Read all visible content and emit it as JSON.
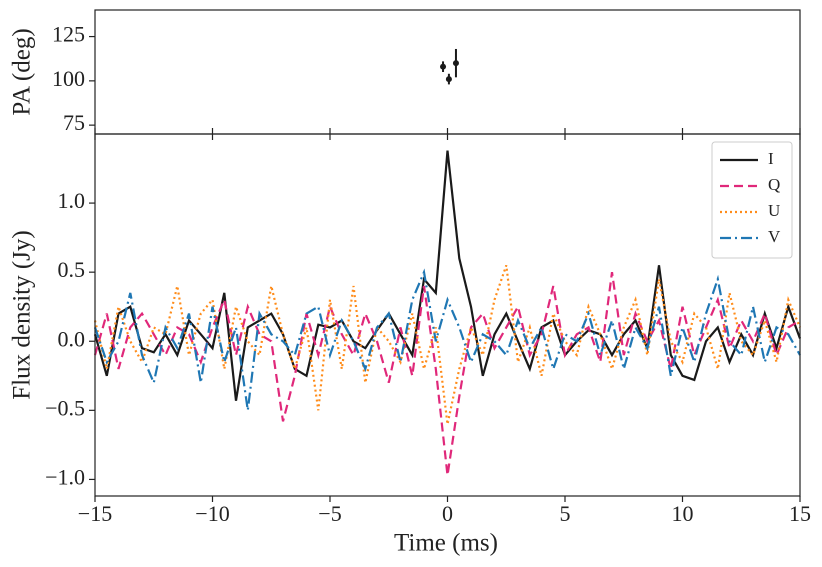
{
  "chart_data": [
    {
      "type": "errorbar",
      "ylabel": "PA (deg)",
      "x": [
        -0.19,
        0.06,
        0.36
      ],
      "values": [
        108,
        101,
        110
      ],
      "errors": [
        3,
        3,
        8
      ],
      "color": "#1a1a1a",
      "xlim": [
        -15,
        15
      ],
      "xticks": [
        {
          "value": -15,
          "label": "−15"
        },
        {
          "value": -10,
          "label": "−10"
        },
        {
          "value": -5,
          "label": "−5"
        },
        0,
        5,
        10,
        15
      ],
      "ylim": [
        70,
        140
      ],
      "yticks": [
        75,
        100,
        125
      ]
    },
    {
      "type": "line",
      "xlabel": "Time (ms)",
      "ylabel": "Flux density (Jy)",
      "legend": "upper right",
      "x": [
        -15,
        -14.5,
        -14,
        -13.5,
        -13,
        -12.5,
        -12,
        -11.5,
        -11,
        -10.5,
        -10,
        -9.5,
        -9,
        -8.5,
        -8,
        -7.5,
        -7,
        -6.5,
        -6,
        -5.5,
        -5,
        -4.5,
        -4,
        -3.5,
        -3,
        -2.5,
        -2,
        -1.5,
        -1,
        -0.5,
        0,
        0.5,
        1,
        1.5,
        2,
        2.5,
        3,
        3.5,
        4,
        4.5,
        5,
        5.5,
        6,
        6.5,
        7,
        7.5,
        8,
        8.5,
        9,
        9.5,
        10,
        10.5,
        11,
        11.5,
        12,
        12.5,
        13,
        13.5,
        14,
        14.5,
        15
      ],
      "series": [
        {
          "name": "I",
          "color": "#1a1a1a",
          "values": [
            0.05,
            -0.25,
            0.2,
            0.25,
            -0.05,
            -0.08,
            0.05,
            -0.1,
            0.15,
            0.05,
            -0.05,
            0.35,
            -0.43,
            0.1,
            0.15,
            0.2,
            0.05,
            -0.2,
            -0.25,
            0.12,
            0.1,
            0.15,
            0.0,
            -0.05,
            0.08,
            0.2,
            0.05,
            -0.1,
            0.45,
            0.35,
            1.38,
            0.6,
            0.25,
            -0.25,
            0.05,
            0.2,
            0.0,
            -0.2,
            0.1,
            0.15,
            -0.1,
            0.0,
            0.08,
            0.05,
            -0.1,
            0.05,
            0.15,
            -0.05,
            0.55,
            -0.1,
            -0.25,
            -0.28,
            0.0,
            0.1,
            -0.15,
            0.05,
            -0.1,
            0.2,
            -0.05,
            0.25,
            0.02
          ]
        },
        {
          "name": "Q",
          "color": "#e0287a",
          "values": [
            -0.1,
            0.2,
            -0.2,
            0.1,
            0.2,
            0.05,
            -0.1,
            0.1,
            0.05,
            -0.15,
            0.1,
            0.3,
            -0.1,
            0.25,
            0.05,
            0.0,
            -0.58,
            -0.25,
            0.2,
            -0.1,
            0.25,
            0.05,
            -0.1,
            0.2,
            0.0,
            -0.3,
            0.1,
            -0.25,
            0.4,
            -0.2,
            -0.97,
            -0.4,
            0.1,
            0.2,
            -0.05,
            0.1,
            0.25,
            -0.1,
            0.05,
            0.4,
            -0.1,
            0.05,
            0.1,
            -0.15,
            0.5,
            -0.1,
            0.2,
            0.0,
            0.15,
            -0.2,
            0.25,
            -0.1,
            0.1,
            0.3,
            -0.05,
            0.15,
            0.0,
            0.2,
            -0.1,
            0.1,
            0.15
          ]
        },
        {
          "name": "U",
          "color": "#ff8c1a",
          "values": [
            0.15,
            -0.2,
            0.25,
            0.0,
            -0.15,
            0.1,
            0.05,
            0.4,
            -0.1,
            0.2,
            0.3,
            -0.2,
            0.25,
            0.0,
            -0.1,
            0.4,
            0.05,
            -0.2,
            0.1,
            -0.5,
            0.3,
            -0.2,
            0.4,
            -0.3,
            0.1,
            0.0,
            -0.15,
            0.2,
            -0.2,
            0.1,
            -0.6,
            -0.2,
            0.1,
            -0.1,
            0.3,
            0.55,
            -0.15,
            0.1,
            -0.25,
            0.2,
            0.0,
            -0.1,
            0.25,
            0.05,
            -0.2,
            0.1,
            0.3,
            -0.1,
            0.45,
            0.0,
            -0.15,
            0.2,
            0.1,
            -0.2,
            0.35,
            0.0,
            -0.1,
            0.15,
            -0.15,
            0.3,
            0.1
          ]
        },
        {
          "name": "V",
          "color": "#1f77b4",
          "values": [
            0.1,
            -0.15,
            0.0,
            0.35,
            -0.1,
            -0.3,
            0.1,
            -0.05,
            0.2,
            -0.3,
            0.25,
            -0.15,
            0.1,
            -0.5,
            0.2,
            0.05,
            0.0,
            -0.1,
            0.2,
            0.25,
            -0.1,
            0.15,
            0.0,
            -0.2,
            0.1,
            0.2,
            -0.15,
            0.3,
            0.5,
            0.0,
            0.3,
            0.1,
            -0.15,
            0.05,
            0.0,
            -0.1,
            0.15,
            -0.05,
            0.1,
            -0.2,
            0.05,
            0.0,
            0.2,
            -0.1,
            0.15,
            -0.2,
            0.1,
            -0.05,
            0.25,
            -0.25,
            0.1,
            -0.15,
            0.2,
            0.45,
            0.0,
            -0.1,
            0.25,
            -0.15,
            0.1,
            0.05,
            -0.1
          ]
        }
      ],
      "xlim": [
        -15,
        15
      ],
      "xticks": [
        {
          "value": -15,
          "label": "−15"
        },
        {
          "value": -10,
          "label": "−10"
        },
        {
          "value": -5,
          "label": "−5"
        },
        0,
        5,
        10,
        15
      ],
      "ylim": [
        -1.12,
        1.5
      ],
      "yticks": [
        {
          "value": -1,
          "label": "−1.0"
        },
        {
          "value": -0.5,
          "label": "−0.5"
        },
        {
          "value": 0,
          "label": "0.0"
        },
        0.5,
        {
          "value": 1,
          "label": "1.0"
        }
      ]
    }
  ]
}
